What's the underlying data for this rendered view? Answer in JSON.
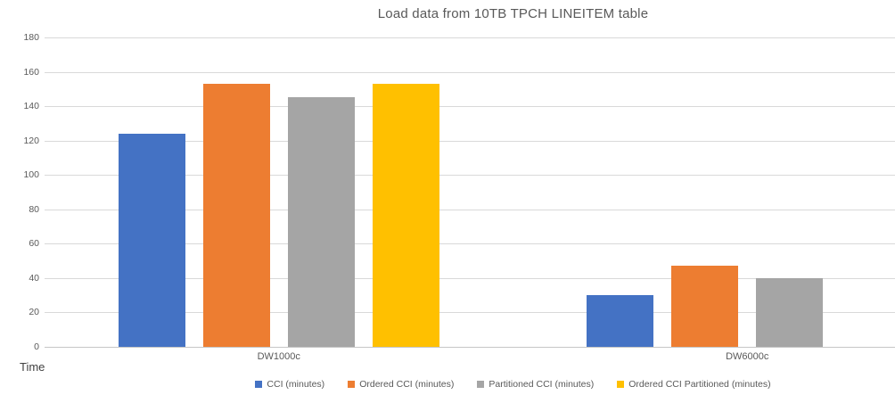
{
  "chart_data": {
    "type": "bar",
    "title": "Load data from 10TB TPCH LINEITEM table",
    "categories": [
      "DW1000c",
      "DW6000c"
    ],
    "series": [
      {
        "name": "CCI (minutes)",
        "color": "#4472C4",
        "values": [
          124,
          30
        ]
      },
      {
        "name": "Ordered CCI (minutes)",
        "color": "#ED7D31",
        "values": [
          153,
          47
        ]
      },
      {
        "name": "Partitioned CCI (minutes)",
        "color": "#A5A5A5",
        "values": [
          145,
          40
        ]
      },
      {
        "name": "Ordered CCI Partitioned (minutes)",
        "color": "#FFC000",
        "values": [
          153,
          0
        ]
      }
    ],
    "ylabel": "Time",
    "xlabel": "",
    "ylim": [
      0,
      180
    ],
    "yticks": [
      0,
      20,
      40,
      60,
      80,
      100,
      120,
      140,
      160,
      180
    ],
    "grid": true,
    "legend_position": "bottom",
    "colors": {
      "gridline": "#d9d9d9",
      "axis_line": "#c6c6c6",
      "text": "#595959",
      "background": "#ffffff"
    }
  }
}
